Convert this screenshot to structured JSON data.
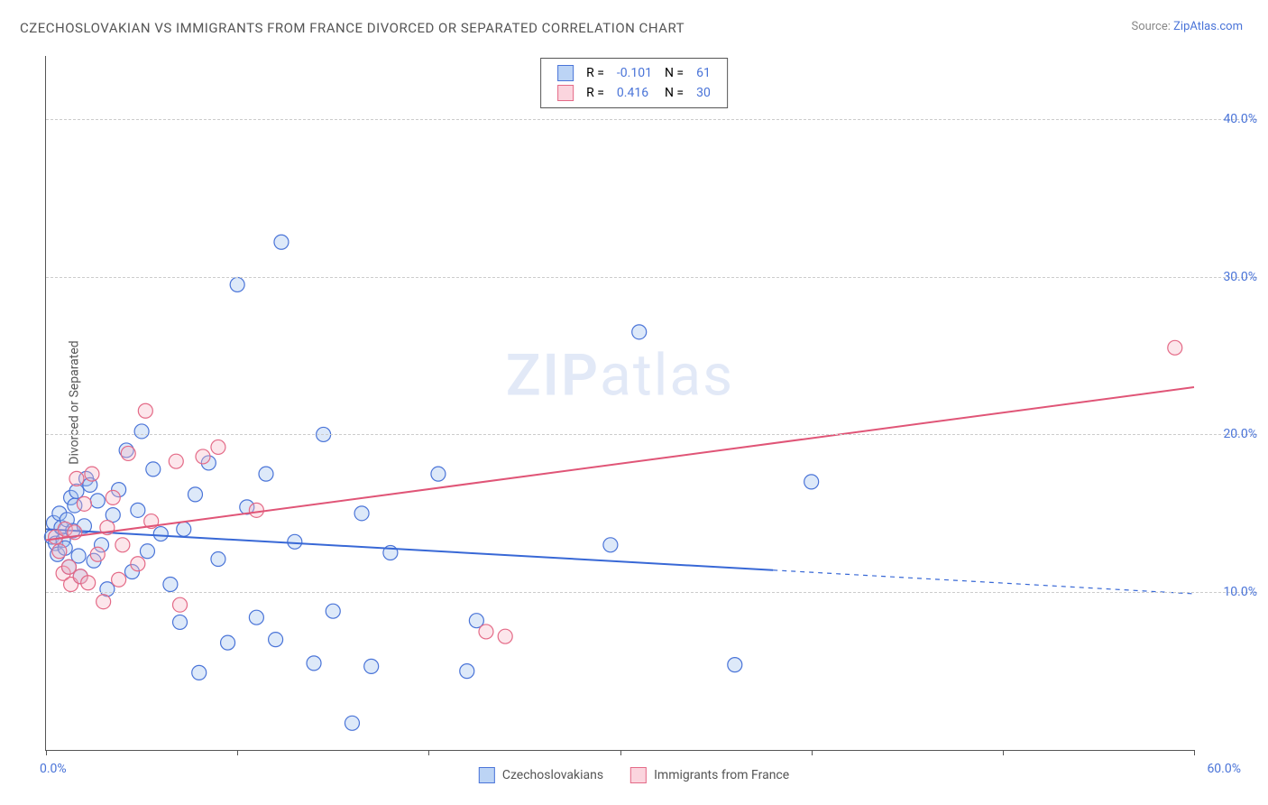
{
  "title": "CZECHOSLOVAKIAN VS IMMIGRANTS FROM FRANCE DIVORCED OR SEPARATED CORRELATION CHART",
  "source_prefix": "Source: ",
  "source_name": "ZipAtlas.com",
  "y_axis_label": "Divorced or Separated",
  "watermark_zip": "ZIP",
  "watermark_atlas": "atlas",
  "chart": {
    "type": "scatter",
    "xlim": [
      0,
      60
    ],
    "ylim": [
      0,
      44
    ],
    "x_min_label": "0.0%",
    "x_max_label": "60.0%",
    "y_ticks": [
      10.0,
      20.0,
      30.0,
      40.0
    ],
    "y_tick_labels": [
      "10.0%",
      "20.0%",
      "30.0%",
      "40.0%"
    ],
    "x_tick_positions": [
      0,
      10,
      20,
      30,
      40,
      50,
      60
    ],
    "background_color": "#ffffff",
    "grid_color": "#cccccc",
    "axis_color": "#555555",
    "marker_radius": 8,
    "marker_stroke_width": 1.2,
    "marker_fill_opacity": 0.35,
    "trend_line_width": 2,
    "series": [
      {
        "name": "Czechoslovakians",
        "color_fill": "#9fc0ee",
        "color_stroke": "#4a74d8",
        "legend_swatch_fill": "#bcd4f5",
        "legend_swatch_border": "#4a74d8",
        "R": "-0.101",
        "N": "61",
        "trend": {
          "x1": 0,
          "y1": 14.0,
          "x2": 38,
          "y2": 11.4,
          "x2_ext": 60,
          "y2_ext": 9.9,
          "color": "#3868d6",
          "dashed_after_x": 38
        },
        "points": [
          [
            0.3,
            13.5
          ],
          [
            0.4,
            14.4
          ],
          [
            0.5,
            13.1
          ],
          [
            0.6,
            12.4
          ],
          [
            0.7,
            15.0
          ],
          [
            0.8,
            14.1
          ],
          [
            0.9,
            13.3
          ],
          [
            1.0,
            12.8
          ],
          [
            1.1,
            14.6
          ],
          [
            1.2,
            11.6
          ],
          [
            1.3,
            16.0
          ],
          [
            1.4,
            13.9
          ],
          [
            1.5,
            15.5
          ],
          [
            1.6,
            16.4
          ],
          [
            1.7,
            12.3
          ],
          [
            1.8,
            11.0
          ],
          [
            2.0,
            14.2
          ],
          [
            2.1,
            17.2
          ],
          [
            2.3,
            16.8
          ],
          [
            2.5,
            12.0
          ],
          [
            2.7,
            15.8
          ],
          [
            2.9,
            13.0
          ],
          [
            3.2,
            10.2
          ],
          [
            3.5,
            14.9
          ],
          [
            3.8,
            16.5
          ],
          [
            4.2,
            19.0
          ],
          [
            4.5,
            11.3
          ],
          [
            4.8,
            15.2
          ],
          [
            5.0,
            20.2
          ],
          [
            5.3,
            12.6
          ],
          [
            5.6,
            17.8
          ],
          [
            6.0,
            13.7
          ],
          [
            6.5,
            10.5
          ],
          [
            7.0,
            8.1
          ],
          [
            7.2,
            14.0
          ],
          [
            7.8,
            16.2
          ],
          [
            8.0,
            4.9
          ],
          [
            8.5,
            18.2
          ],
          [
            9.0,
            12.1
          ],
          [
            9.5,
            6.8
          ],
          [
            10.0,
            29.5
          ],
          [
            10.5,
            15.4
          ],
          [
            11.0,
            8.4
          ],
          [
            11.5,
            17.5
          ],
          [
            12.0,
            7.0
          ],
          [
            12.3,
            32.2
          ],
          [
            13.0,
            13.2
          ],
          [
            14.0,
            5.5
          ],
          [
            14.5,
            20.0
          ],
          [
            15.0,
            8.8
          ],
          [
            16.0,
            1.7
          ],
          [
            16.5,
            15.0
          ],
          [
            17.0,
            5.3
          ],
          [
            18.0,
            12.5
          ],
          [
            20.5,
            17.5
          ],
          [
            22.0,
            5.0
          ],
          [
            22.5,
            8.2
          ],
          [
            29.5,
            13.0
          ],
          [
            31.0,
            26.5
          ],
          [
            36.0,
            5.4
          ],
          [
            40.0,
            17.0
          ]
        ]
      },
      {
        "name": "Immigrants from France",
        "color_fill": "#f6b8c6",
        "color_stroke": "#e46a87",
        "legend_swatch_fill": "#fbd5de",
        "legend_swatch_border": "#e46a87",
        "R": "0.416",
        "N": "30",
        "trend": {
          "x1": 0,
          "y1": 13.3,
          "x2": 60,
          "y2": 23.0,
          "color": "#e05577"
        },
        "points": [
          [
            0.5,
            13.5
          ],
          [
            0.7,
            12.6
          ],
          [
            0.9,
            11.2
          ],
          [
            1.0,
            14.0
          ],
          [
            1.2,
            11.6
          ],
          [
            1.3,
            10.5
          ],
          [
            1.5,
            13.8
          ],
          [
            1.6,
            17.2
          ],
          [
            1.8,
            11.0
          ],
          [
            2.0,
            15.6
          ],
          [
            2.2,
            10.6
          ],
          [
            2.4,
            17.5
          ],
          [
            2.7,
            12.4
          ],
          [
            3.0,
            9.4
          ],
          [
            3.2,
            14.1
          ],
          [
            3.5,
            16.0
          ],
          [
            3.8,
            10.8
          ],
          [
            4.0,
            13.0
          ],
          [
            4.3,
            18.8
          ],
          [
            4.8,
            11.8
          ],
          [
            5.2,
            21.5
          ],
          [
            5.5,
            14.5
          ],
          [
            6.8,
            18.3
          ],
          [
            7.0,
            9.2
          ],
          [
            8.2,
            18.6
          ],
          [
            9.0,
            19.2
          ],
          [
            11.0,
            15.2
          ],
          [
            23.0,
            7.5
          ],
          [
            24.0,
            7.2
          ],
          [
            59.0,
            25.5
          ]
        ]
      }
    ]
  },
  "legend_top": {
    "r_label": "R = ",
    "n_label": "N = "
  }
}
